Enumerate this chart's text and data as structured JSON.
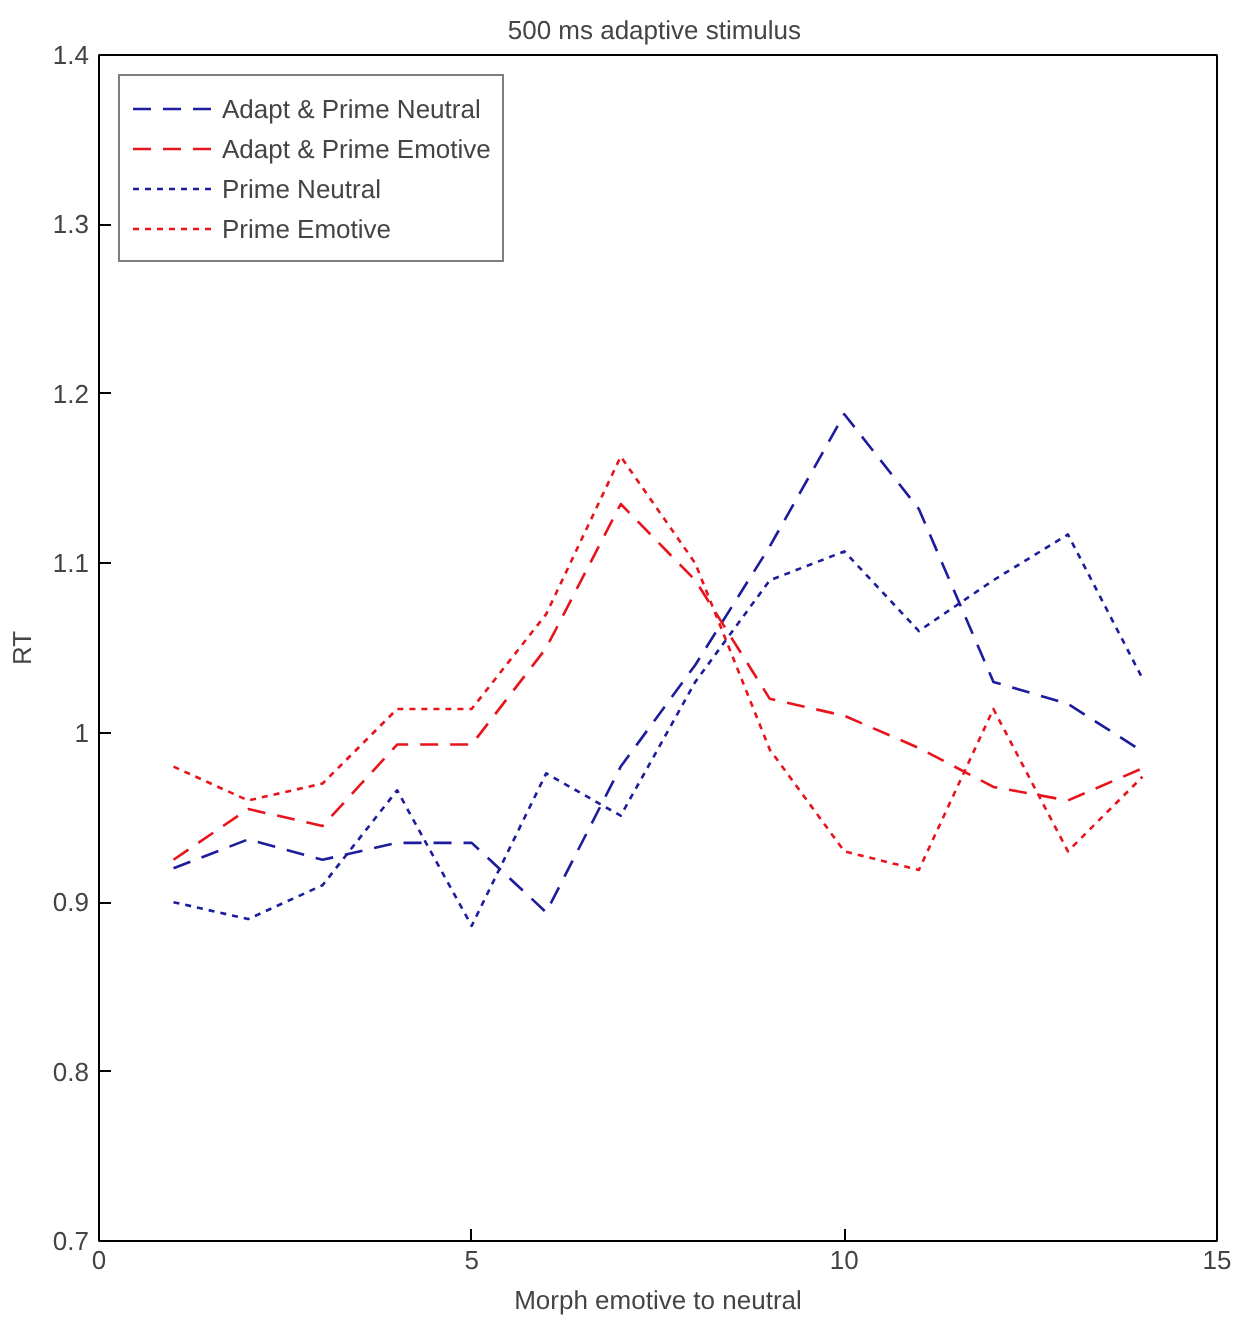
{
  "chart_data": {
    "type": "line",
    "title": "500 ms  adaptive stimulus",
    "xlabel": "Morph emotive to neutral",
    "ylabel": "RT",
    "x": [
      1,
      2,
      3,
      4,
      5,
      6,
      7,
      8,
      9,
      10,
      11,
      12,
      13,
      14
    ],
    "series": [
      {
        "name": "Adapt & Prime Neutral",
        "color": "#1c1c9c",
        "line_style": "dashed",
        "values": [
          0.92,
          0.937,
          0.925,
          0.935,
          0.935,
          0.894,
          0.98,
          1.04,
          1.11,
          1.188,
          1.132,
          1.03,
          1.017,
          0.989
        ]
      },
      {
        "name": "Adapt & Prime Emotive",
        "color": "#e8141c",
        "line_style": "dashed",
        "values": [
          0.925,
          0.955,
          0.945,
          0.993,
          0.993,
          1.05,
          1.135,
          1.09,
          1.02,
          1.01,
          0.991,
          0.968,
          0.96,
          0.979
        ]
      },
      {
        "name": "Prime Neutral",
        "color": "#1c1c9c",
        "line_style": "dotted",
        "values": [
          0.9,
          0.89,
          0.91,
          0.966,
          0.886,
          0.976,
          0.951,
          1.03,
          1.09,
          1.107,
          1.06,
          1.09,
          1.117,
          1.032
        ]
      },
      {
        "name": "Prime Emotive",
        "color": "#e8141c",
        "line_style": "dotted",
        "values": [
          0.98,
          0.96,
          0.97,
          1.014,
          1.014,
          1.07,
          1.163,
          1.1,
          0.99,
          0.93,
          0.919,
          1.014,
          0.93,
          0.974
        ]
      }
    ],
    "xlim": [
      0,
      15
    ],
    "ylim": [
      0.7,
      1.4
    ],
    "xticks": [
      0,
      5,
      10,
      15
    ],
    "yticks": [
      0.7,
      0.8,
      0.9,
      1,
      1.1,
      1.2,
      1.3,
      1.4
    ],
    "grid": false,
    "legend": "top left",
    "marker": "none"
  }
}
